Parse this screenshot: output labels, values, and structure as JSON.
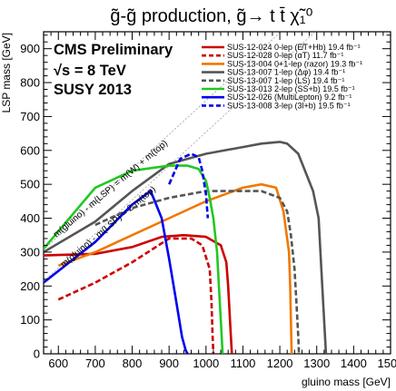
{
  "chart_data": {
    "type": "line",
    "title": "g̃-g̃ production, g̃→ t t̄ χ̃₁⁰",
    "xlabel": "gluino mass [GeV]",
    "ylabel": "LSP mass [GeV]",
    "xlim": [
      560,
      1500
    ],
    "ylim": [
      0,
      950
    ],
    "x_ticks": [
      600,
      700,
      800,
      900,
      1000,
      1100,
      1200,
      1300,
      1400,
      1500
    ],
    "y_ticks": [
      0,
      100,
      200,
      300,
      400,
      500,
      600,
      700,
      800,
      900
    ],
    "annotations": {
      "experiment": "CMS Preliminary",
      "energy": "√s = 8 TeV",
      "conference": "SUSY 2013",
      "diagonal_upper": "m(gluino) - m(LSP) = m(W) + m(top)",
      "diagonal_lower": "m(gluino) - m(LSP) = 2 m(top)"
    },
    "diagonals": [
      {
        "name": "m(gluino) - m(LSP) = m(W) + m(top)",
        "offset": 253
      },
      {
        "name": "m(gluino) - m(LSP) = 2 m(top)",
        "offset": 346
      }
    ],
    "legend_position": "top-right",
    "series": [
      {
        "name": "SUS-12-024 0-lep (E̸T+Hb) 19.4 fb⁻¹",
        "color": "#cc0000",
        "dash": "solid",
        "x": [
          560,
          700,
          800,
          880,
          940,
          1000,
          1040,
          1055,
          1060,
          1065,
          1070
        ],
        "y": [
          290,
          295,
          315,
          345,
          350,
          345,
          320,
          270,
          200,
          100,
          0
        ]
      },
      {
        "name": "SUS-12-028 0-lep (αT) 11.7 fb⁻¹",
        "color": "#cc0000",
        "dash": "dashed",
        "x": [
          600,
          700,
          800,
          900,
          960,
          990,
          1010,
          1015,
          1018,
          1020
        ],
        "y": [
          160,
          210,
          270,
          340,
          340,
          320,
          250,
          150,
          50,
          0
        ]
      },
      {
        "name": "SUS-13-004 0+1-lep (razor) 19.3 fb⁻¹",
        "color": "#f07800",
        "dash": "solid",
        "x": [
          600,
          700,
          800,
          900,
          1000,
          1100,
          1150,
          1190,
          1210,
          1225,
          1228,
          1230,
          1232
        ],
        "y": [
          260,
          300,
          350,
          400,
          450,
          490,
          500,
          490,
          420,
          300,
          200,
          100,
          0
        ]
      },
      {
        "name": "SUS-13-007 1-lep (Δφ) 19.4 fb⁻¹",
        "color": "#555555",
        "dash": "solid",
        "x": [
          560,
          700,
          800,
          900,
          1000,
          1100,
          1150,
          1200,
          1220,
          1250,
          1290,
          1305,
          1310,
          1315,
          1325
        ],
        "y": [
          300,
          390,
          480,
          560,
          590,
          610,
          620,
          625,
          620,
          590,
          480,
          400,
          300,
          200,
          0
        ]
      },
      {
        "name": "SUS-13-007 1-lep (LS) 19.4 fb⁻¹",
        "color": "#555555",
        "dash": "dashed",
        "x": [
          700,
          800,
          900,
          1000,
          1100,
          1150,
          1200,
          1220,
          1230,
          1240,
          1245,
          1250,
          1252
        ],
        "y": [
          380,
          430,
          460,
          480,
          480,
          480,
          460,
          420,
          350,
          250,
          150,
          50,
          0
        ]
      },
      {
        "name": "SUS-13-013 2-lep (SS+b) 19.5 fb⁻¹",
        "color": "#22c822",
        "dash": "solid",
        "x": [
          560,
          700,
          800,
          900,
          950,
          980,
          1000,
          1010,
          1020,
          1030,
          1035,
          1040,
          1045
        ],
        "y": [
          310,
          490,
          540,
          555,
          555,
          545,
          510,
          460,
          400,
          300,
          200,
          100,
          0
        ]
      },
      {
        "name": "SUS-12-026 (MultiLepton) 9.2 fb⁻¹",
        "color": "#0000ee",
        "dash": "solid",
        "x": [
          560,
          700,
          800,
          850,
          880,
          900,
          920,
          935,
          945,
          950
        ],
        "y": [
          210,
          330,
          440,
          480,
          400,
          280,
          150,
          50,
          10,
          0
        ]
      },
      {
        "name": "SUS-13-008 3-lep (3l+b) 19.5 fb⁻¹",
        "color": "#0000ee",
        "dash": "dashed",
        "x": [
          900,
          930,
          960,
          980,
          990,
          1000,
          1005
        ],
        "y": [
          500,
          575,
          590,
          580,
          540,
          470,
          400
        ]
      }
    ]
  }
}
